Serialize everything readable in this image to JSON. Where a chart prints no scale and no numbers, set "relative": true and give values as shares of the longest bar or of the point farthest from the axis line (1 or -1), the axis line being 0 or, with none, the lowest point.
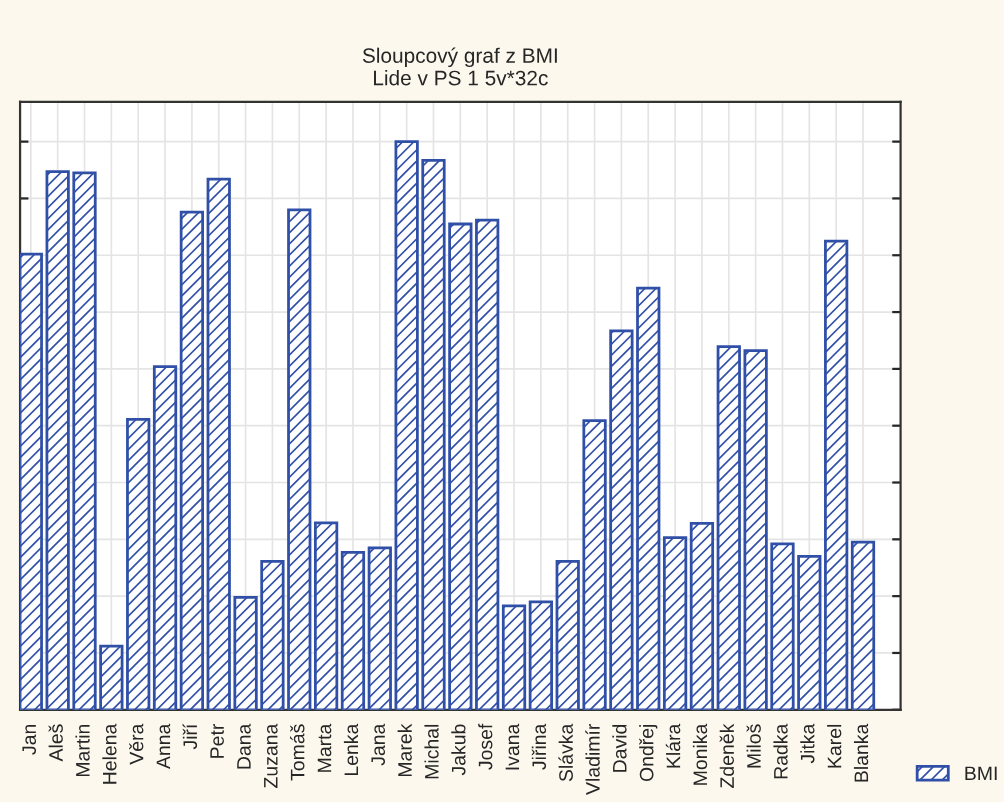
{
  "chart_data": {
    "type": "bar",
    "title": "Sloupcový graf z BMI",
    "subtitle": "Lide v PS 1 5v*32c",
    "relative": true,
    "grid": true,
    "legend": "bottom right",
    "categories": [
      "Jan",
      "Aleš",
      "Martin",
      "Helena",
      "Věra",
      "Anna",
      "Jiří",
      "Petr",
      "Dana",
      "Zuzana",
      "Tomáš",
      "Marta",
      "Lenka",
      "Jana",
      "Marek",
      "Michal",
      "Jakub",
      "Josef",
      "Ivana",
      "Jiřina",
      "Slávka",
      "Vladimír",
      "David",
      "Ondřej",
      "Klára",
      "Monika",
      "Zdeněk",
      "Miloš",
      "Radka",
      "Jitka",
      "Karel",
      "Blanka"
    ],
    "series": [
      {
        "name": "BMI",
        "color": "#3050a8",
        "values": [
          0.802,
          0.947,
          0.945,
          0.112,
          0.511,
          0.604,
          0.876,
          0.934,
          0.198,
          0.261,
          0.88,
          0.329,
          0.277,
          0.285,
          1,
          0.967,
          0.855,
          0.862,
          0.183,
          0.19,
          0.261,
          0.509,
          0.667,
          0.742,
          0.303,
          0.328,
          0.639,
          0.632,
          0.292,
          0.27,
          0.825,
          0.295
        ]
      }
    ]
  }
}
